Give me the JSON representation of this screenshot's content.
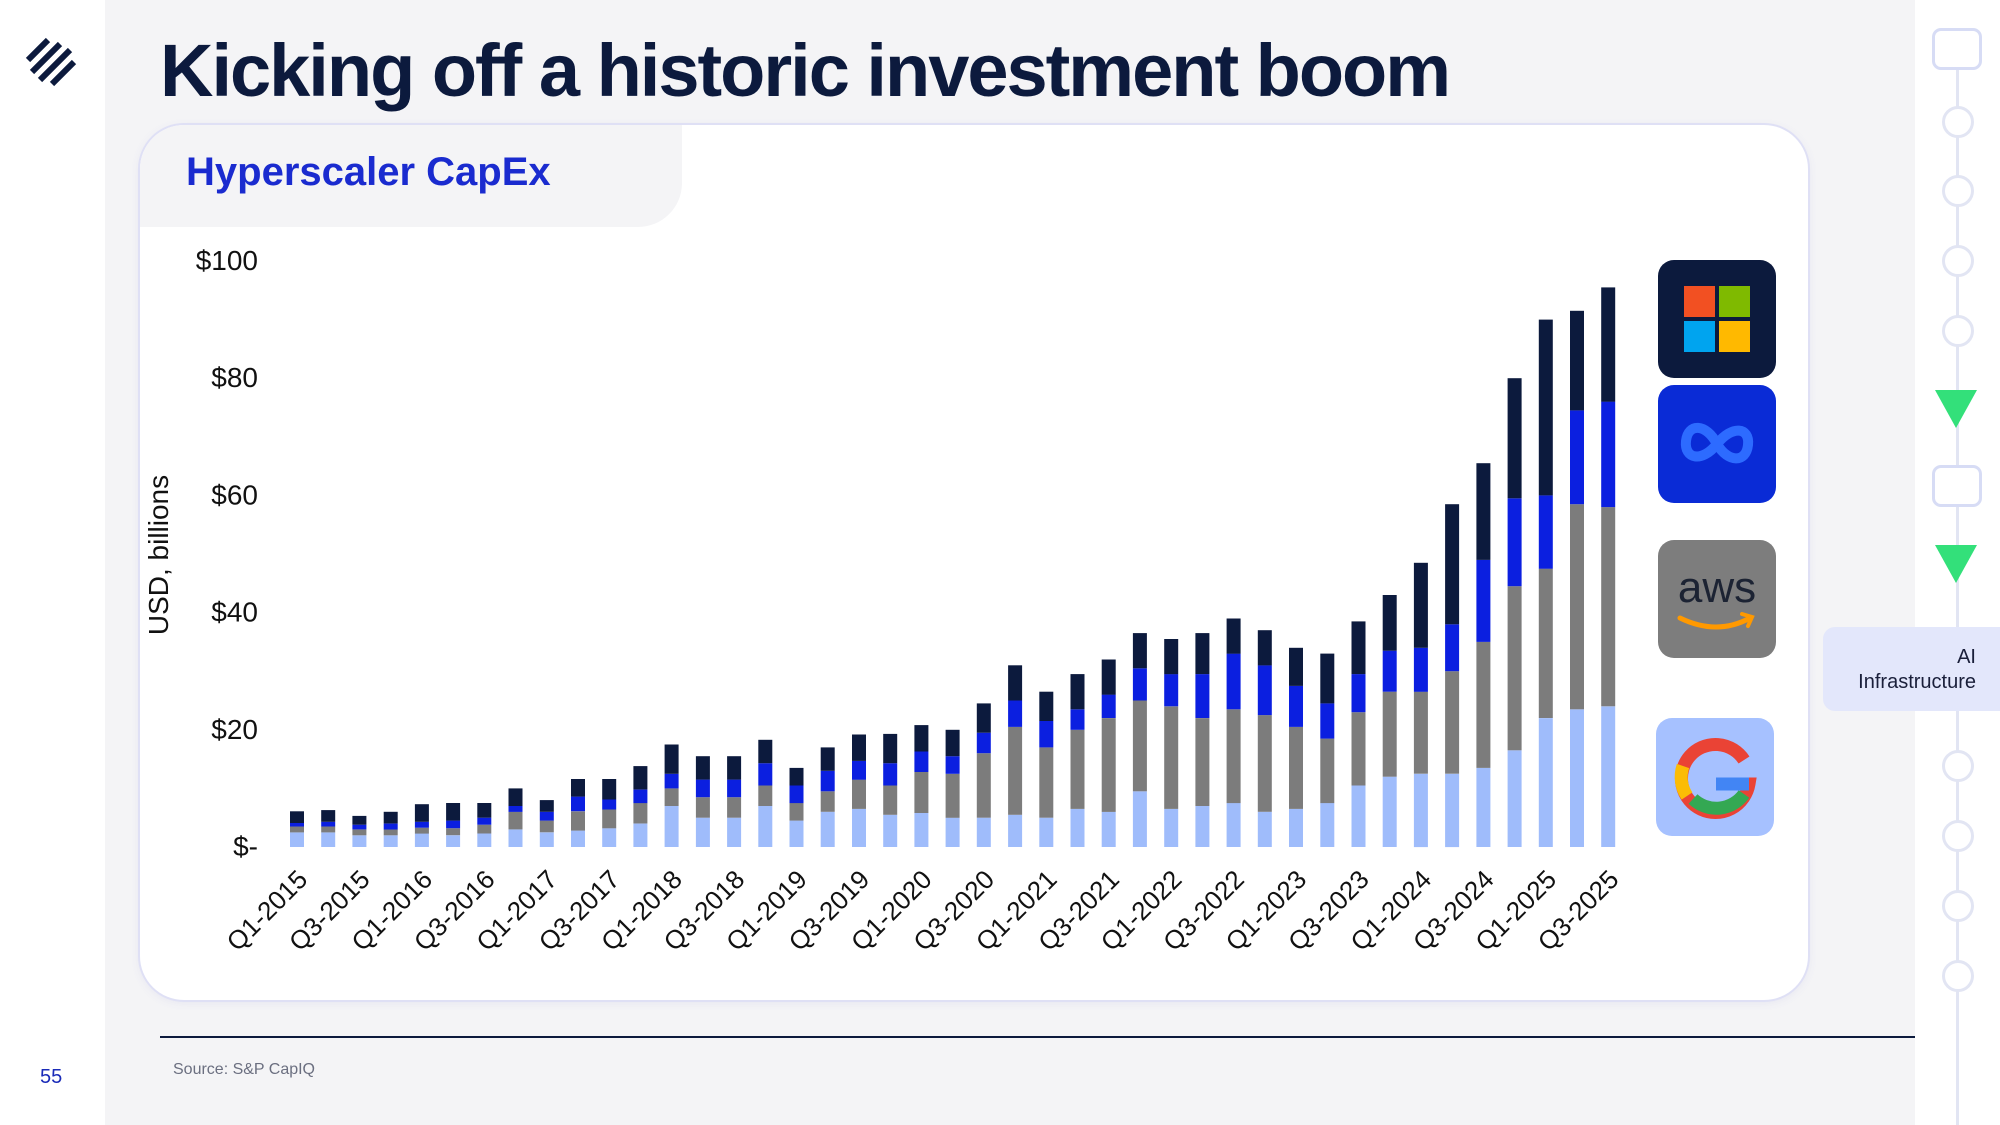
{
  "slide": {
    "title": "Kicking off a historic investment boom",
    "page_number": "55",
    "source": "Source: S&P CapIQ",
    "section_label_line1": "AI",
    "section_label_line2": "Infrastructure"
  },
  "card": {
    "title": "Hyperscaler CapEx"
  },
  "brands": [
    {
      "name": "Microsoft",
      "icon": "microsoft-logo-icon",
      "background": "#0c1a3d"
    },
    {
      "name": "Meta",
      "icon": "meta-logo-icon",
      "background": "#0a2bd6"
    },
    {
      "name": "AWS",
      "icon": "aws-logo-icon",
      "background": "#7d7d7d",
      "text": "aws"
    },
    {
      "name": "Google",
      "icon": "google-logo-icon",
      "background": "#a6c1ff"
    }
  ],
  "colors": {
    "accent": "#1a2bcf",
    "navy": "#0c1a3d",
    "series": [
      "#9fbcfb",
      "#7c7c7c",
      "#0b1fe0",
      "#0c1a3d"
    ]
  },
  "chart_data": {
    "type": "bar",
    "stacked": true,
    "ylabel": "USD, billions",
    "ylim": [
      0,
      100
    ],
    "yticks": [
      0,
      20,
      40,
      60,
      80,
      100
    ],
    "ytick_labels": [
      "$-",
      "$20",
      "$40",
      "$60",
      "$80",
      "$100"
    ],
    "legend": "brand logos at right, top-to-bottom: Microsoft, Meta, AWS, Google",
    "categories": [
      "Q1-2015",
      "Q2-2015",
      "Q3-2015",
      "Q4-2015",
      "Q1-2016",
      "Q2-2016",
      "Q3-2016",
      "Q4-2016",
      "Q1-2017",
      "Q2-2017",
      "Q3-2017",
      "Q4-2017",
      "Q1-2018",
      "Q2-2018",
      "Q3-2018",
      "Q4-2018",
      "Q1-2019",
      "Q2-2019",
      "Q3-2019",
      "Q4-2019",
      "Q1-2020",
      "Q2-2020",
      "Q3-2020",
      "Q4-2020",
      "Q1-2021",
      "Q2-2021",
      "Q3-2021",
      "Q4-2021",
      "Q1-2022",
      "Q2-2022",
      "Q3-2022",
      "Q4-2022",
      "Q1-2023",
      "Q2-2023",
      "Q3-2023",
      "Q4-2023",
      "Q1-2024",
      "Q2-2024",
      "Q3-2024",
      "Q4-2024",
      "Q1-2025",
      "Q2-2025",
      "Q3-2025"
    ],
    "tick_labels": [
      "Q1-2015",
      "Q3-2015",
      "Q1-2016",
      "Q3-2016",
      "Q1-2017",
      "Q3-2017",
      "Q1-2018",
      "Q3-2018",
      "Q1-2019",
      "Q3-2019",
      "Q1-2020",
      "Q3-2020",
      "Q1-2021",
      "Q3-2021",
      "Q1-2022",
      "Q3-2022",
      "Q1-2023",
      "Q3-2023",
      "Q1-2024",
      "Q3-2024",
      "Q1-2025",
      "Q3-2025"
    ],
    "series": [
      {
        "values": [
          2.5,
          2.5,
          2,
          2,
          2.3,
          2,
          2.3,
          3,
          2.5,
          2.8,
          3.2,
          4,
          7,
          5,
          5,
          7,
          4.5,
          6,
          6.5,
          5.5,
          5.8,
          5,
          5,
          5.5,
          5,
          6.5,
          6,
          9.5,
          6.5,
          7,
          7.5,
          6,
          6.5,
          7.5,
          10.5,
          12,
          12.5,
          12.5,
          13.5,
          16.5,
          22,
          23.5,
          24
        ]
      },
      {
        "values": [
          1,
          1,
          1,
          1,
          1,
          1.2,
          1.5,
          3,
          2,
          3.3,
          3.2,
          3.5,
          3,
          3.5,
          3.5,
          3.5,
          3,
          3.5,
          5,
          5,
          7,
          7.5,
          11,
          15,
          12,
          13.5,
          16,
          15.5,
          17.5,
          15,
          16,
          16.5,
          14,
          11,
          12.5,
          14.5,
          14,
          17.5,
          21.5,
          28,
          25.5,
          35,
          34
        ]
      },
      {
        "values": [
          0.6,
          0.8,
          0.8,
          1,
          1,
          1.3,
          1.2,
          1,
          1.5,
          2.5,
          1.7,
          2.3,
          2.5,
          3,
          3,
          3.8,
          3,
          3.5,
          3.2,
          3.8,
          3.5,
          3,
          3.5,
          4.5,
          4.5,
          3.5,
          4,
          5.5,
          5.5,
          7.5,
          9.5,
          8.5,
          7,
          6,
          6.5,
          7,
          7.5,
          8,
          14,
          15,
          12.5,
          16,
          18
        ]
      },
      {
        "values": [
          2,
          2,
          1.5,
          2,
          3,
          3,
          2.5,
          3,
          2,
          3,
          3.5,
          4,
          5,
          4,
          4,
          4,
          3,
          4,
          4.5,
          5,
          4.5,
          4.5,
          5,
          6,
          5,
          6,
          6,
          6,
          6,
          7,
          6,
          6,
          6.5,
          8.5,
          9,
          9.5,
          14.5,
          20.5,
          16.5,
          20.5,
          30,
          17,
          19.5
        ]
      }
    ]
  }
}
